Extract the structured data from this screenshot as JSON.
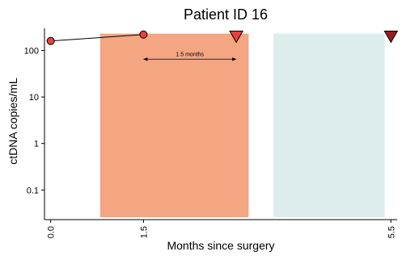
{
  "chart_data": {
    "type": "scatter",
    "title": "Patient ID 16",
    "xlabel": "Months since surgery",
    "ylabel": "ctDNA copies/mL",
    "y_scale": "log",
    "xlim": [
      -0.1,
      5.6
    ],
    "ylim": [
      0.025,
      300
    ],
    "x_ticks": [
      {
        "value": 0.0,
        "label": "0.0"
      },
      {
        "value": 1.5,
        "label": "1.5"
      },
      {
        "value": 5.5,
        "label": "5.5"
      }
    ],
    "y_ticks": [
      {
        "value": 100,
        "label": "100"
      },
      {
        "value": 10,
        "label": "10"
      },
      {
        "value": 1,
        "label": "1"
      },
      {
        "value": 0.1,
        "label": "0.1"
      }
    ],
    "grid": false,
    "series": [
      {
        "marker": "circle",
        "color": "#e8403f",
        "connected": true,
        "points": [
          {
            "x": 0.0,
            "y": 160
          },
          {
            "x": 1.5,
            "y": 220
          }
        ]
      }
    ],
    "events": [
      {
        "marker": "triangle-down",
        "color": "#e8403f",
        "x": 3.0,
        "y": 205
      },
      {
        "marker": "triangle-down",
        "color": "#9b1c20",
        "x": 5.5,
        "y": 205
      }
    ],
    "shaded_regions": [
      {
        "x_start": 0.8,
        "x_end": 3.2,
        "color": "#f4a582"
      },
      {
        "x_start": 3.6,
        "x_end": 5.4,
        "color": "#ddedee"
      }
    ],
    "annotations": [
      {
        "text": "1.5 months",
        "x_start": 1.5,
        "x_end": 3.0,
        "y": 65
      }
    ]
  }
}
